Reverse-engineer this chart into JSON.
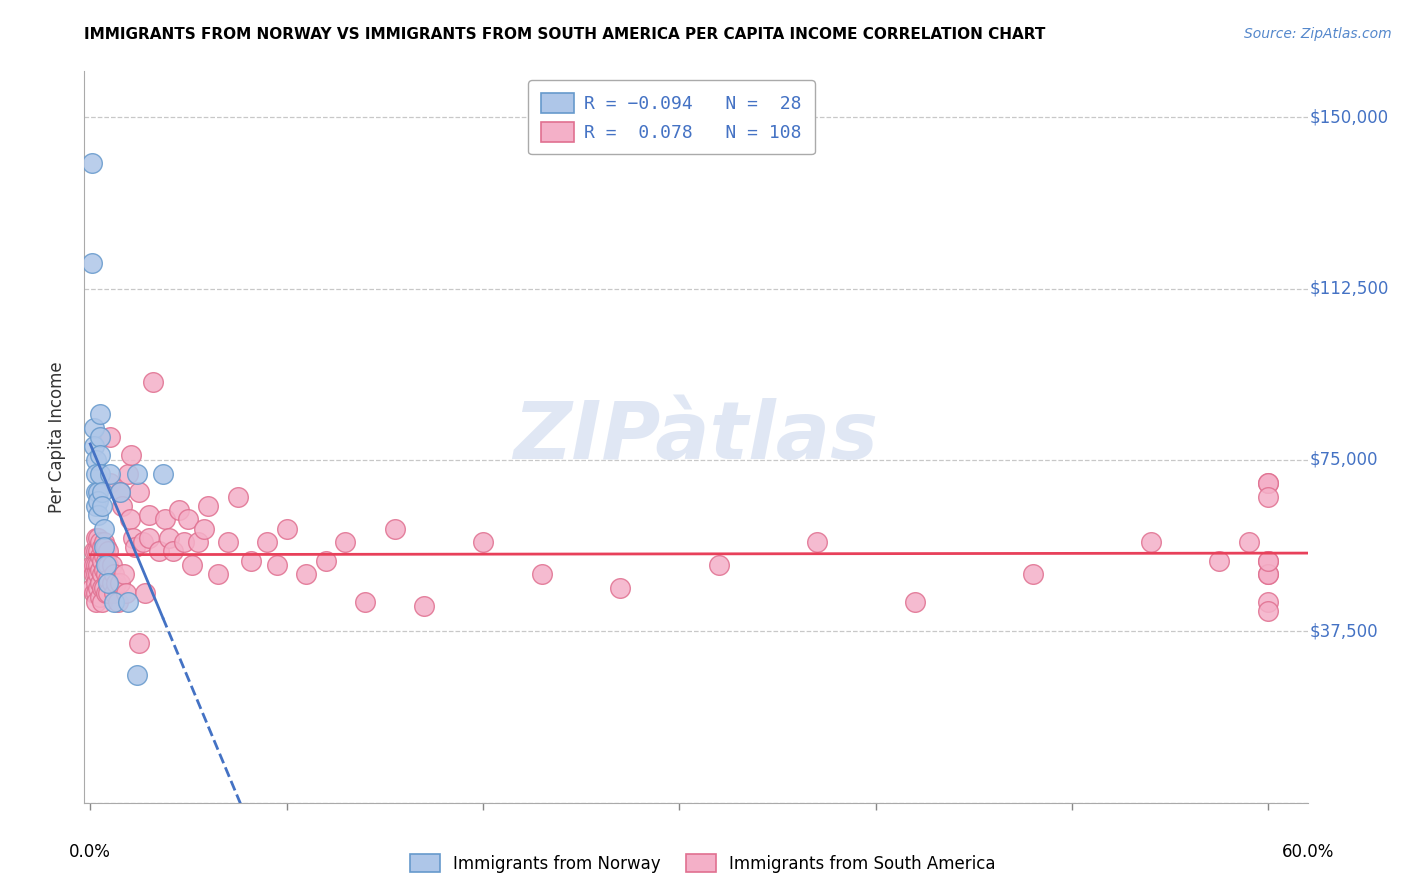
{
  "title": "IMMIGRANTS FROM NORWAY VS IMMIGRANTS FROM SOUTH AMERICA PER CAPITA INCOME CORRELATION CHART",
  "source": "Source: ZipAtlas.com",
  "ylabel": "Per Capita Income",
  "ymin": 0,
  "ymax": 160000,
  "xmin": -0.003,
  "xmax": 0.62,
  "norway_R": -0.094,
  "norway_N": 28,
  "sa_R": 0.078,
  "sa_N": 108,
  "norway_color": "#aec6e8",
  "sa_color": "#f4b0c8",
  "norway_edge": "#6699cc",
  "sa_edge": "#e07090",
  "trend_norway_color": "#4472c4",
  "trend_sa_color": "#e8405a",
  "ytick_vals": [
    0,
    37500,
    75000,
    112500,
    150000
  ],
  "ytick_labels_right": [
    "",
    "$37,500",
    "$75,000",
    "$112,500",
    "$150,000"
  ],
  "norway_x": [
    0.001,
    0.001,
    0.002,
    0.002,
    0.003,
    0.003,
    0.003,
    0.003,
    0.004,
    0.004,
    0.004,
    0.005,
    0.005,
    0.005,
    0.005,
    0.006,
    0.006,
    0.007,
    0.007,
    0.008,
    0.009,
    0.01,
    0.012,
    0.015,
    0.019,
    0.024,
    0.024,
    0.037
  ],
  "norway_y": [
    140000,
    118000,
    82000,
    78000,
    75000,
    72000,
    68000,
    65000,
    68000,
    66000,
    63000,
    85000,
    80000,
    76000,
    72000,
    68000,
    65000,
    60000,
    56000,
    52000,
    48000,
    72000,
    44000,
    68000,
    44000,
    28000,
    72000,
    72000
  ],
  "sa_x": [
    0.001,
    0.001,
    0.002,
    0.002,
    0.002,
    0.002,
    0.003,
    0.003,
    0.003,
    0.003,
    0.003,
    0.003,
    0.003,
    0.004,
    0.004,
    0.004,
    0.004,
    0.004,
    0.005,
    0.005,
    0.005,
    0.005,
    0.005,
    0.006,
    0.006,
    0.006,
    0.006,
    0.006,
    0.007,
    0.007,
    0.007,
    0.007,
    0.008,
    0.008,
    0.008,
    0.008,
    0.009,
    0.009,
    0.009,
    0.009,
    0.01,
    0.01,
    0.011,
    0.011,
    0.012,
    0.012,
    0.013,
    0.014,
    0.015,
    0.015,
    0.016,
    0.017,
    0.018,
    0.019,
    0.02,
    0.021,
    0.022,
    0.023,
    0.025,
    0.025,
    0.027,
    0.028,
    0.03,
    0.03,
    0.032,
    0.035,
    0.038,
    0.04,
    0.042,
    0.045,
    0.048,
    0.05,
    0.052,
    0.055,
    0.058,
    0.06,
    0.065,
    0.07,
    0.075,
    0.082,
    0.09,
    0.095,
    0.1,
    0.11,
    0.12,
    0.13,
    0.14,
    0.155,
    0.17,
    0.2,
    0.23,
    0.27,
    0.32,
    0.37,
    0.42,
    0.48,
    0.54,
    0.575,
    0.59,
    0.6,
    0.6,
    0.6,
    0.6,
    0.6,
    0.6,
    0.6,
    0.6,
    0.6
  ],
  "sa_y": [
    52000,
    47000,
    55000,
    52000,
    50000,
    46000,
    58000,
    55000,
    52000,
    50000,
    48000,
    46000,
    44000,
    58000,
    55000,
    52000,
    50000,
    47000,
    57000,
    54000,
    51000,
    48000,
    45000,
    56000,
    53000,
    50000,
    47000,
    44000,
    57000,
    54000,
    51000,
    47000,
    56000,
    53000,
    50000,
    46000,
    55000,
    52000,
    49000,
    46000,
    70000,
    80000,
    52000,
    48000,
    50000,
    46000,
    48000,
    44000,
    68000,
    48000,
    65000,
    50000,
    46000,
    72000,
    62000,
    76000,
    58000,
    56000,
    68000,
    35000,
    57000,
    46000,
    63000,
    58000,
    92000,
    55000,
    62000,
    58000,
    55000,
    64000,
    57000,
    62000,
    52000,
    57000,
    60000,
    65000,
    50000,
    57000,
    67000,
    53000,
    57000,
    52000,
    60000,
    50000,
    53000,
    57000,
    44000,
    60000,
    43000,
    57000,
    50000,
    47000,
    52000,
    57000,
    44000,
    50000,
    57000,
    53000,
    57000,
    44000,
    50000,
    53000,
    70000,
    42000,
    50000,
    53000,
    70000,
    67000
  ]
}
